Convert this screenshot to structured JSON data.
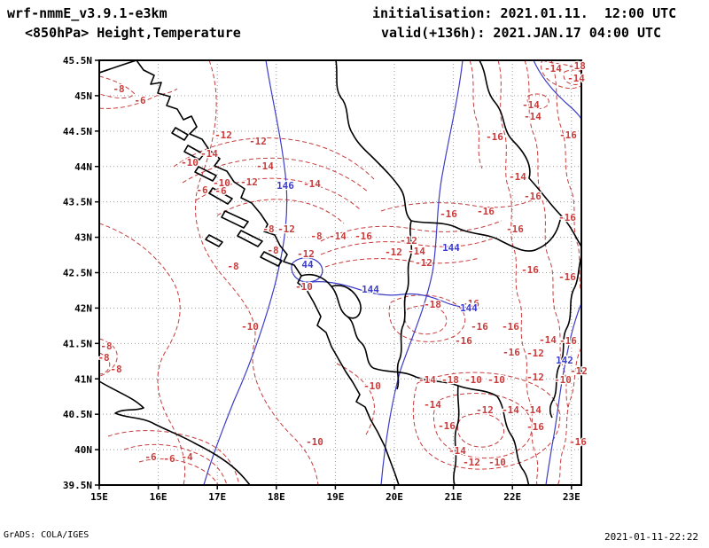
{
  "header": {
    "model": "wrf-nmmE_v3.9.1-e3km",
    "level_line": "<850hPa> Height,Temperature",
    "init_line": "initialisation: 2021.01.11.  12:00 UTC",
    "valid_line": "valid(+136h): 2021.JAN.17 04:00 UTC"
  },
  "footer": {
    "left": "GrADS: COLA/IGES",
    "right": "2021-01-11-22:22"
  },
  "colors": {
    "temperature": "#c83c3c",
    "height": "#3c3cc8",
    "coast": "#000000",
    "grid": "#9a9a9a",
    "frame": "#000000"
  },
  "chart_data": {
    "type": "contour-map",
    "title": "<850hPa> Height,Temperature",
    "lon_ticks": [
      "15E",
      "16E",
      "17E",
      "18E",
      "19E",
      "20E",
      "21E",
      "22E",
      "23E"
    ],
    "lat_ticks": [
      "45.5N",
      "45N",
      "44.5N",
      "44N",
      "43.5N",
      "43N",
      "42.5N",
      "42N",
      "41.5N",
      "41N",
      "40.5N",
      "40N",
      "39.5N"
    ],
    "lon_range": [
      15,
      23.17
    ],
    "lat_range": [
      39.5,
      45.5
    ],
    "height_contour_labels_dam": [
      146,
      144,
      142
    ],
    "temperature_contours_c": [
      -4,
      -6,
      -8,
      -10,
      -12,
      -14,
      -16,
      -18
    ],
    "paths": {
      "coast_borders": [
        "M154,68 L162,79 L174,85 L170,95 L182,93 L178,105 L192,109 L188,119 L200,123 L207,135 L216,131 L222,143 L214,151 L228,157 L236,169 L248,179 L242,187 L256,193 L264,205 L276,213 L272,223 L284,229 L294,241 L302,253 L298,261 L310,265 L316,277 L324,287 L320,295 L332,299 L340,311 L336,319 L346,327 L354,341 L362,357 L358,367 L368,375 L374,391 L382,405 L390,419 L398,431 L406,445 L402,453 L412,459 L418,473 L426,487 L434,503 L440,519 L446,535 L450,547",
        "M112,82 C124,78 138,73 154,68",
        "M198,144 l14,8 l-4,6 l-14,-8 z",
        "M212,164 l18,10 l-5,6 l-17,-9 z",
        "M224,188 l20,10 l-4,6 l-20,-10 z",
        "M240,212 l22,12 l-5,6 l-21,-12 z",
        "M254,238 l26,12 l-5,7 l-25,-12 z",
        "M272,260 l24,12 l-5,6 l-23,-12 z",
        "M298,284 l20,10 l-4,6 l-20,-10 z",
        "M236,265 l15,8 l-4,5 l-15,-8 z",
        "M379,68 C382,86 376,101 387,113 C394,125 390,139 398,151 C404,163 414,171 422,179 C434,191 444,201 452,213 C460,225 454,239 464,249",
        "M541,68 C551,86 546,101 559,116 C571,131 566,146 579,159 C591,171 601,186 597,201 C611,216 621,231 633,243 C645,255 651,271 659,283",
        "M464,249 C482,253 500,249 516,257 C532,265 550,263 564,271 C580,279 594,287 606,281 C620,275 630,263 633,243",
        "M340,311 C354,307 366,313 374,323 C384,335 380,349 392,357 C402,365 398,379 408,387 C416,395 412,409 421,415",
        "M374,323 C388,319 400,327 406,341 C410,353 402,363 392,357",
        "M464,249 C460,265 468,279 462,293 C458,305 464,319 458,331 C454,343 460,357 454,369 C450,381 456,395 450,407 C446,417 452,429 448,439",
        "M421,415 C437,421 453,417 469,425 C485,431 501,429 517,435 C533,441 549,439 561,447",
        "M517,435 C515,451 521,467 515,483 C511,497 517,513 513,529 C511,539 512,544 513,547",
        "M561,447 C571,461 567,477 577,491 C585,503 581,519 591,531 C597,541 595,545 597,547",
        "M659,283 C651,297 655,313 647,327 C641,341 647,357 639,371 C633,383 639,399 631,413 C625,425 631,441 623,453 C619,461 621,467 623,471",
        "M112,430 C132,442 150,448 162,460 C152,464 140,460 130,466 C144,472 160,470 174,478 C190,486 206,492 220,500 C236,508 250,516 262,526 C272,534 278,542 282,547"
      ],
      "height": [
        "M300,68 C307,112 317,152 322,197 C327,242 320,282 310,322 C298,367 282,412 264,452 C250,487 237,522 230,547",
        "M522,68 C517,112 507,152 500,192 C492,232 494,272 488,307 C480,347 464,382 452,417 C442,452 434,502 430,547",
        "M352,318 C372,316 392,322 410,328 C424,332 440,334 454,332 C470,330 486,334 500,340 C514,346 526,348 538,346",
        "M332,295 C342,288 356,290 362,299 C367,308 361,317 349,318 C338,319 330,312 329,303 C329,297 330,297 332,295",
        "M656,342 C646,367 641,392 637,414 C631,442 629,472 623,502 C619,527 617,539 616,547",
        "M602,68 C612,90 627,106 642,119 C650,126 654,131 656,134"
      ],
      "temperature": [
        "M112,86 C128,90 142,96 152,106 C143,114 127,110 112,106",
        "M112,122 C134,124 156,118 172,110 C182,105 192,106 200,100",
        "M196,188 C232,162 282,150 332,158 C372,164 402,182 422,202",
        "M206,206 C242,184 287,174 331,180 C366,185 396,200 416,217",
        "M221,226 C252,206 291,197 331,203 C363,208 389,221 406,236",
        "M245,243 C270,228 300,222 330,226 C355,229 375,240 388,252",
        "M236,68 C252,112 242,162 226,202 C212,242 226,282 252,312 C278,342 292,362 287,387 C278,422 300,462 330,492 C346,508 356,524 359,547",
        "M112,252 C142,262 172,282 192,312 C212,342 202,372 187,396 C172,420 177,450 192,476 C205,500 212,524 207,547",
        "M112,382 C126,386 136,396 131,408 C126,420 114,424 112,424",
        "M112,398 C120,401 126,408 123,415 C120,421 114,422 112,422",
        "M140,507 C166,498 196,500 221,511 C241,519 251,531 256,547",
        "M157,521 C177,515 201,517 221,526 C236,533 243,541 246,547",
        "M122,492 C152,482 192,484 226,496 C250,505 264,520 270,547",
        "M362,272 C392,256 432,251 470,259 C510,265 541,259 566,249",
        "M362,287 C396,273 436,269 472,276 C506,281 533,277 556,269",
        "M367,301 C397,291 431,289 466,295 C496,299 521,296 541,291",
        "M430,238 C460,228 500,226 535,232 C560,236 582,233 600,226",
        "M441,341 C461,330 491,330 511,341 C529,351 529,369 513,379 C493,389 463,387 449,375 C439,366 437,351 441,341",
        "M459,349 C471,343 489,343 499,351 C507,359 505,369 495,374 C483,379 467,377 461,369 C456,363 455,355 459,349",
        "M471,432 C501,419 546,416 581,426 C616,435 636,453 631,479 C627,503 601,521 566,527 C531,533 496,526 479,506 C465,489 463,458 471,432",
        "M496,451 C519,441 553,441 576,451 C597,460 605,478 597,495 C589,511 563,519 537,516 C513,513 495,501 491,483 C488,469 489,459 496,451",
        "M521,471 C535,464 553,465 563,474 C572,482 570,495 558,501 C545,507 527,504 520,494 C515,487 515,477 521,471",
        "M592,68 C602,96 592,126 602,151 C612,176 602,201 612,226 C620,249 610,271 620,293 C628,313 620,336 628,356 C636,376 628,396 636,416 C642,432 636,448 642,462",
        "M622,68 C632,96 624,121 634,146 C642,169 634,191 644,213 C652,233 644,256 652,276 C656,293 652,313 656,331",
        "M562,68 C570,96 560,121 568,146 C576,169 566,191 574,213 C582,236 572,259 580,281 C586,299 578,319 586,339 C592,356 584,376 592,396 C598,413 590,433 598,453 C604,471 596,491 604,511 C610,529 604,539 606,547",
        "M530,68 C538,92 530,114 538,136 C544,154 536,172 544,190",
        "M612,68 C627,73 642,71 654,79 C662,84 664,91 657,96 C647,103 630,99 620,91 C612,85 608,75 612,68",
        "M637,81 C647,77 657,79 660,86 C662,92 654,97 645,95 C638,93 634,87 637,81",
        "M596,108 C606,104 616,106 619,113 C621,119 613,124 604,122 C597,120 593,114 596,108",
        "M656,392 C646,412 651,432 643,452 C637,470 642,490 635,508 C630,524 634,540 629,547",
        "M380,410 C400,420 415,432 420,447 C426,462 420,478 412,492"
      ]
    },
    "labels": [
      [
        "t",
        651,
        74,
        "-18"
      ],
      [
        "t",
        624,
        77,
        "-14"
      ],
      [
        "t",
        650,
        88,
        "-14"
      ],
      [
        "t",
        599,
        118,
        "-14"
      ],
      [
        "t",
        601,
        131,
        "-14"
      ],
      [
        "t",
        558,
        154,
        "-16"
      ],
      [
        "t",
        641,
        152,
        "-16"
      ],
      [
        "t",
        134,
        100,
        "-8"
      ],
      [
        "t",
        158,
        113,
        "-6"
      ],
      [
        "t",
        252,
        152,
        "-12"
      ],
      [
        "t",
        291,
        159,
        "-12"
      ],
      [
        "t",
        236,
        173,
        "-14"
      ],
      [
        "t",
        214,
        183,
        "-10"
      ],
      [
        "t",
        299,
        187,
        "-14"
      ],
      [
        "t",
        250,
        206,
        "-10"
      ],
      [
        "t",
        281,
        205,
        "-12"
      ],
      [
        "t",
        352,
        207,
        "-14"
      ],
      [
        "t",
        228,
        214,
        "-6"
      ],
      [
        "t",
        249,
        215,
        "-6"
      ],
      [
        "t",
        584,
        199,
        "-14"
      ],
      [
        "t",
        601,
        221,
        "-16"
      ],
      [
        "t",
        506,
        241,
        "-16"
      ],
      [
        "t",
        548,
        238,
        "-16"
      ],
      [
        "t",
        581,
        258,
        "-16"
      ],
      [
        "t",
        640,
        245,
        "-16"
      ],
      [
        "t",
        303,
        258,
        "-8"
      ],
      [
        "t",
        323,
        258,
        "-12"
      ],
      [
        "t",
        357,
        266,
        "-8"
      ],
      [
        "t",
        381,
        266,
        "-14"
      ],
      [
        "t",
        410,
        266,
        "-16"
      ],
      [
        "t",
        461,
        271,
        "-12"
      ],
      [
        "t",
        470,
        283,
        "-14"
      ],
      [
        "t",
        444,
        284,
        "-12"
      ],
      [
        "t",
        478,
        296,
        "-12"
      ],
      [
        "t",
        308,
        282,
        "-8"
      ],
      [
        "t",
        345,
        286,
        "-12"
      ],
      [
        "t",
        263,
        300,
        "-8"
      ],
      [
        "t",
        343,
        323,
        "-10"
      ],
      [
        "t",
        488,
        343,
        "-18"
      ],
      [
        "t",
        531,
        342,
        "-16"
      ],
      [
        "t",
        541,
        368,
        "-16"
      ],
      [
        "t",
        576,
        368,
        "-16"
      ],
      [
        "t",
        523,
        384,
        "-16"
      ],
      [
        "t",
        618,
        383,
        "-14"
      ],
      [
        "t",
        641,
        384,
        "-16"
      ],
      [
        "t",
        577,
        397,
        "-16"
      ],
      [
        "t",
        604,
        398,
        "-12"
      ],
      [
        "t",
        598,
        304,
        "-16"
      ],
      [
        "t",
        640,
        312,
        "-16"
      ],
      [
        "t",
        653,
        418,
        "-12"
      ],
      [
        "t",
        635,
        428,
        "-10"
      ],
      [
        "t",
        282,
        368,
        "-10"
      ],
      [
        "t",
        420,
        435,
        "-10"
      ],
      [
        "t",
        355,
        498,
        "-10"
      ],
      [
        "t",
        482,
        428,
        "-14"
      ],
      [
        "t",
        508,
        428,
        "-18"
      ],
      [
        "t",
        534,
        428,
        "-10"
      ],
      [
        "t",
        560,
        428,
        "-10"
      ],
      [
        "t",
        604,
        425,
        "-12"
      ],
      [
        "t",
        488,
        456,
        "-14"
      ],
      [
        "t",
        547,
        462,
        "-12"
      ],
      [
        "t",
        576,
        462,
        "-14"
      ],
      [
        "t",
        601,
        462,
        "-14"
      ],
      [
        "t",
        504,
        480,
        "-16"
      ],
      [
        "t",
        604,
        481,
        "-16"
      ],
      [
        "t",
        516,
        508,
        "-14"
      ],
      [
        "t",
        532,
        521,
        "-12"
      ],
      [
        "t",
        561,
        521,
        "-10"
      ],
      [
        "t",
        652,
        498,
        "-16"
      ],
      [
        "t",
        170,
        515,
        "-6"
      ],
      [
        "t",
        191,
        517,
        "-6"
      ],
      [
        "t",
        211,
        515,
        "-4"
      ],
      [
        "t",
        120,
        390,
        "-8"
      ],
      [
        "t",
        117,
        403,
        "-8"
      ],
      [
        "t",
        131,
        416,
        "-8"
      ],
      [
        "h",
        322,
        209,
        "146"
      ],
      [
        "h",
        509,
        279,
        "144"
      ],
      [
        "h",
        418,
        326,
        "144"
      ],
      [
        "h",
        529,
        347,
        "144"
      ],
      [
        "h",
        347,
        298,
        "44"
      ],
      [
        "h",
        637,
        406,
        "142"
      ]
    ]
  }
}
